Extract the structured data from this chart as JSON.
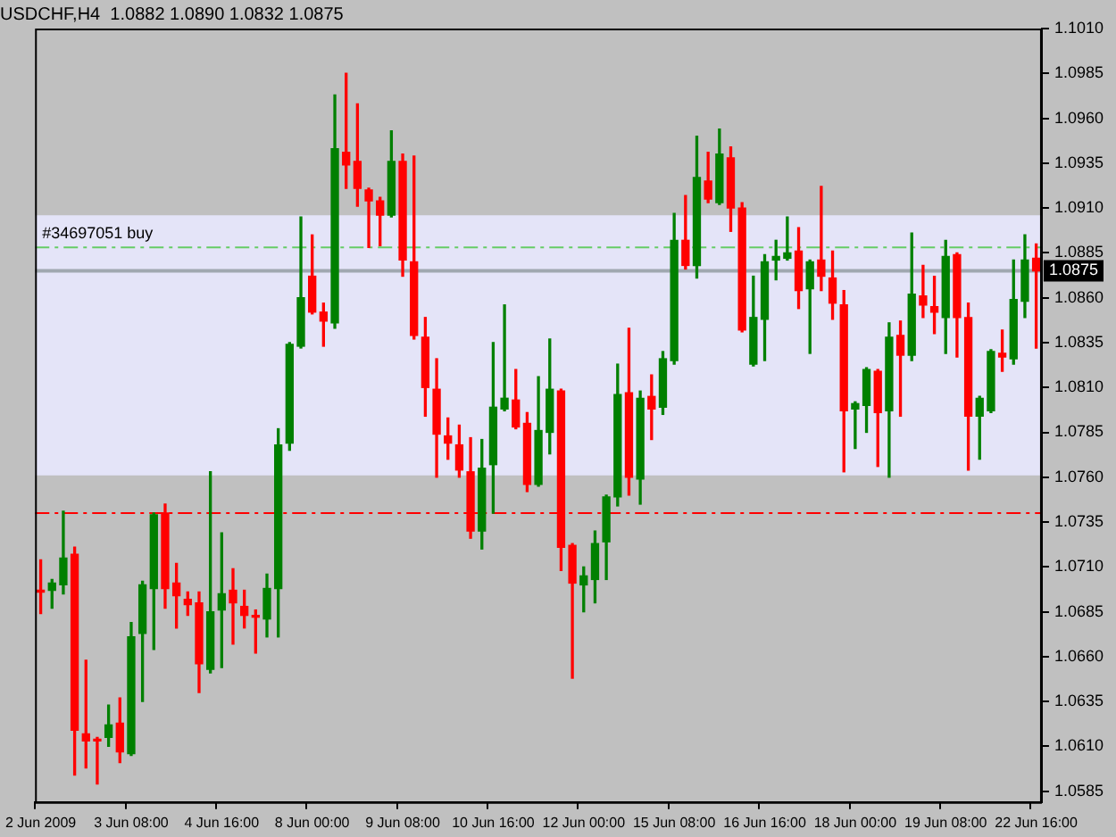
{
  "chart_data": {
    "type": "candlestick",
    "title": "USDCHF,H4  1.0882 1.0890 1.0832 1.0875",
    "categories": [
      "2 Jun 2009",
      null,
      null,
      null,
      null,
      null,
      null,
      null,
      "3 Jun 08:00",
      null,
      null,
      null,
      null,
      null,
      null,
      null,
      "4 Jun 16:00",
      null,
      null,
      null,
      null,
      null,
      null,
      null,
      "8 Jun 00:00",
      null,
      null,
      null,
      null,
      null,
      null,
      null,
      "9 Jun 08:00",
      null,
      null,
      null,
      null,
      null,
      null,
      null,
      "10 Jun 16:00",
      null,
      null,
      null,
      null,
      null,
      null,
      null,
      "12 Jun 00:00",
      null,
      null,
      null,
      null,
      null,
      null,
      null,
      "15 Jun 08:00",
      null,
      null,
      null,
      null,
      null,
      null,
      null,
      "16 Jun 16:00",
      null,
      null,
      null,
      null,
      null,
      null,
      null,
      "18 Jun 00:00",
      null,
      null,
      null,
      null,
      null,
      null,
      null,
      "19 Jun 08:00",
      null,
      null,
      null,
      null,
      null,
      null,
      null,
      "22 Jun 16:00"
    ],
    "ohlc": [
      [
        1.0697,
        1.0714,
        1.0684,
        1.0696
      ],
      [
        1.0697,
        1.0703,
        1.0687,
        1.0701
      ],
      [
        1.07,
        1.0741,
        1.0695,
        1.0715
      ],
      [
        1.0717,
        1.0721,
        1.0594,
        1.0619
      ],
      [
        1.0617,
        1.0658,
        1.0598,
        1.0613
      ],
      [
        1.0614,
        1.0615,
        1.0589,
        1.0613
      ],
      [
        1.0615,
        1.0633,
        1.061,
        1.0622
      ],
      [
        1.0623,
        1.0637,
        1.0601,
        1.0607
      ],
      [
        1.0606,
        1.0679,
        1.0605,
        1.0671
      ],
      [
        1.0673,
        1.0702,
        1.0635,
        1.07
      ],
      [
        1.0698,
        1.074,
        1.0664,
        1.0739
      ],
      [
        1.074,
        1.0745,
        1.0687,
        1.0698
      ],
      [
        1.0701,
        1.0712,
        1.0676,
        1.0694
      ],
      [
        1.0692,
        1.0696,
        1.0683,
        1.0689
      ],
      [
        1.069,
        1.0696,
        1.064,
        1.0656
      ],
      [
        1.0653,
        1.0763,
        1.0651,
        1.0685
      ],
      [
        1.0686,
        1.0729,
        1.0654,
        1.0695
      ],
      [
        1.0697,
        1.0709,
        1.0667,
        1.069
      ],
      [
        1.0688,
        1.0697,
        1.0676,
        1.0683
      ],
      [
        1.0683,
        1.0686,
        1.0662,
        1.0682
      ],
      [
        1.0681,
        1.0706,
        1.0671,
        1.0698
      ],
      [
        1.0698,
        1.0787,
        1.0671,
        1.0778
      ],
      [
        1.0779,
        1.0835,
        1.0775,
        1.0834
      ],
      [
        1.0833,
        1.0905,
        1.0832,
        1.086
      ],
      [
        1.0872,
        1.0895,
        1.0851,
        1.0852
      ],
      [
        1.0852,
        1.0857,
        1.0833,
        1.0847
      ],
      [
        1.0846,
        1.0973,
        1.0843,
        1.0943
      ],
      [
        1.0941,
        1.0985,
        1.0921,
        1.0934
      ],
      [
        1.0936,
        1.0968,
        1.0911,
        1.0921
      ],
      [
        1.092,
        1.0921,
        1.0888,
        1.0914
      ],
      [
        1.0914,
        1.0916,
        1.0889,
        1.0906
      ],
      [
        1.0906,
        1.0953,
        1.0905,
        1.0936
      ],
      [
        1.0936,
        1.094,
        1.0872,
        1.0881
      ],
      [
        1.088,
        1.0939,
        1.0837,
        1.0839
      ],
      [
        1.0838,
        1.0849,
        1.0794,
        1.081
      ],
      [
        1.0809,
        1.0826,
        1.076,
        1.0784
      ],
      [
        1.0783,
        1.0793,
        1.077,
        1.0779
      ],
      [
        1.0778,
        1.0789,
        1.076,
        1.0764
      ],
      [
        1.0763,
        1.0782,
        1.0726,
        1.073
      ],
      [
        1.073,
        1.0781,
        1.072,
        1.0765
      ],
      [
        1.0767,
        1.0835,
        1.074,
        1.0799
      ],
      [
        1.0798,
        1.0856,
        1.0797,
        1.0804
      ],
      [
        1.0803,
        1.082,
        1.0787,
        1.0788
      ],
      [
        1.079,
        1.0796,
        1.0752,
        1.0756
      ],
      [
        1.0756,
        1.0816,
        1.0755,
        1.0786
      ],
      [
        1.0785,
        1.0837,
        1.0773,
        1.0809
      ],
      [
        1.0808,
        1.0809,
        1.0708,
        1.0721
      ],
      [
        1.0722,
        1.0723,
        1.0648,
        1.0701
      ],
      [
        1.07,
        1.071,
        1.0685,
        1.0705
      ],
      [
        1.0703,
        1.073,
        1.069,
        1.0723
      ],
      [
        1.0724,
        1.075,
        1.0703,
        1.0749
      ],
      [
        1.0749,
        1.0823,
        1.0744,
        1.0806
      ],
      [
        1.0807,
        1.0843,
        1.075,
        1.076
      ],
      [
        1.0759,
        1.0808,
        1.0745,
        1.0804
      ],
      [
        1.0805,
        1.0817,
        1.0781,
        1.0798
      ],
      [
        1.0799,
        1.083,
        1.0795,
        1.0826
      ],
      [
        1.0825,
        1.0907,
        1.0823,
        1.0892
      ],
      [
        1.0892,
        1.0917,
        1.0876,
        1.0878
      ],
      [
        1.0878,
        1.095,
        1.0871,
        1.0927
      ],
      [
        1.0925,
        1.0941,
        1.0913,
        1.0915
      ],
      [
        1.0913,
        1.0954,
        1.0912,
        1.094
      ],
      [
        1.0938,
        1.0944,
        1.0897,
        1.091
      ],
      [
        1.091,
        1.0913,
        1.0841,
        1.0842
      ],
      [
        1.0823,
        1.0872,
        1.0822,
        1.0849
      ],
      [
        1.0848,
        1.0884,
        1.0825,
        1.088
      ],
      [
        1.0881,
        1.0892,
        1.087,
        1.0883
      ],
      [
        1.0882,
        1.0905,
        1.0881,
        1.0885
      ],
      [
        1.0886,
        1.0899,
        1.0854,
        1.0864
      ],
      [
        1.0865,
        1.0881,
        1.0829,
        1.088
      ],
      [
        1.0881,
        1.0922,
        1.0864,
        1.0872
      ],
      [
        1.0871,
        1.0886,
        1.0848,
        1.0857
      ],
      [
        1.0856,
        1.0864,
        1.0763,
        1.0797
      ],
      [
        1.0798,
        1.0802,
        1.0776,
        1.0801
      ],
      [
        1.08,
        1.0821,
        1.0785,
        1.082
      ],
      [
        1.0819,
        1.082,
        1.0766,
        1.0796
      ],
      [
        1.0797,
        1.0846,
        1.076,
        1.0838
      ],
      [
        1.0839,
        1.0847,
        1.0794,
        1.0828
      ],
      [
        1.0828,
        1.0896,
        1.0825,
        1.0862
      ],
      [
        1.0861,
        1.0878,
        1.0849,
        1.0856
      ],
      [
        1.0855,
        1.0872,
        1.084,
        1.0852
      ],
      [
        1.0849,
        1.0892,
        1.0829,
        1.0883
      ],
      [
        1.0884,
        1.0885,
        1.0827,
        1.0849
      ],
      [
        1.0849,
        1.0857,
        1.0764,
        1.0794
      ],
      [
        1.0794,
        1.0805,
        1.077,
        1.0804
      ],
      [
        1.0797,
        1.0831,
        1.0796,
        1.083
      ],
      [
        1.0829,
        1.0842,
        1.0819,
        1.0827
      ],
      [
        1.0826,
        1.0881,
        1.0823,
        1.0859
      ],
      [
        1.0858,
        1.0895,
        1.0849,
        1.0881
      ],
      [
        1.0882,
        1.089,
        1.0832,
        1.0875
      ]
    ],
    "ylim": [
      1.0579,
      1.101
    ],
    "yticks": [
      1.0585,
      {
        "value": 1.061,
        "label": "1.0610"
      },
      1.0635,
      {
        "value": 1.066,
        "label": "1.0660"
      },
      1.0685,
      {
        "value": 1.071,
        "label": "1.0710"
      },
      1.0735,
      {
        "value": 1.076,
        "label": "1.0760"
      },
      1.0785,
      {
        "value": 1.081,
        "label": "1.0810"
      },
      1.0835,
      {
        "value": 1.086,
        "label": "1.0860"
      },
      1.0885,
      {
        "value": 1.091,
        "label": "1.0910"
      },
      1.0935,
      {
        "value": 1.096,
        "label": "1.0960"
      },
      1.0985,
      {
        "value": 1.101,
        "label": "1.1010"
      }
    ],
    "ref_lines": [
      {
        "axis": "y",
        "value": 1.0888,
        "label": "#34697051 buy",
        "color": "#66cc66",
        "line_style": "dashed"
      },
      {
        "axis": "y",
        "value": 1.0875,
        "label": "1.0875",
        "color": "#a0a8b0",
        "line_style": "solid"
      },
      {
        "axis": "y",
        "value": 1.074,
        "color": "#ff0000",
        "line_style": "dashed"
      }
    ],
    "bands": [
      {
        "axis": "y",
        "from": 1.0761,
        "to": 1.0906,
        "color": "#e4e4f8"
      }
    ]
  }
}
